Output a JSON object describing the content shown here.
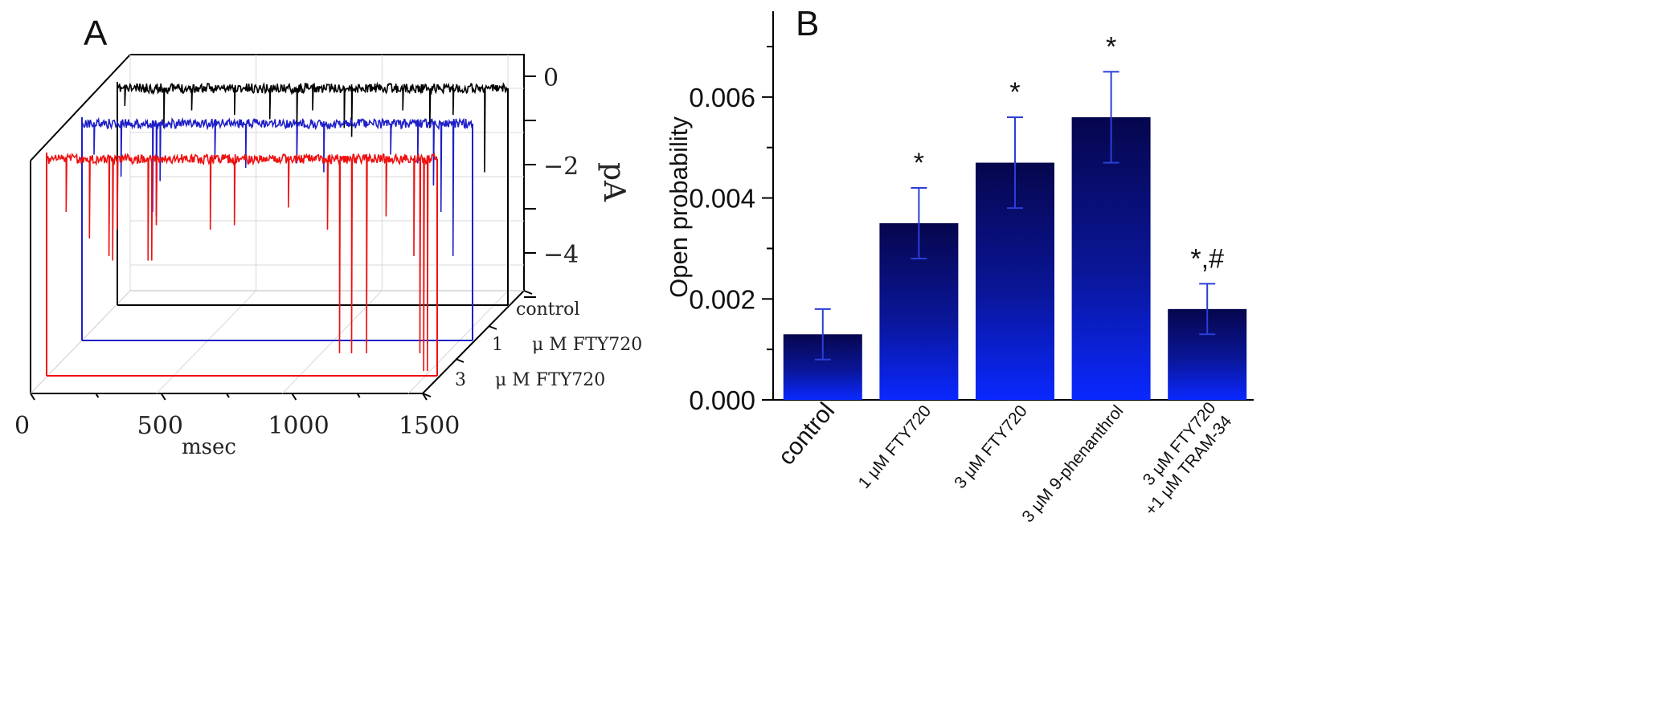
{
  "chart_data": [
    {
      "panel": "A",
      "type": "line",
      "projection": "3d-waterfall",
      "xlabel": "msec",
      "xlim": [
        0,
        1500
      ],
      "xticks": [
        0,
        500,
        1000,
        1500
      ],
      "zlabel": "pA",
      "zlim": [
        -5,
        0.5
      ],
      "zticks": [
        0,
        -2,
        -4
      ],
      "zticklabels": [
        "0",
        "−2",
        "−4"
      ],
      "series": [
        {
          "name": "control",
          "tick_label": "control",
          "color": "#000000",
          "baseline_pA": 0
        },
        {
          "name": "1 μM FTY720",
          "tick_number": "1",
          "tick_text": "μ M FTY720",
          "color": "#1f1fc8",
          "baseline_pA": 0
        },
        {
          "name": "3 μM FTY720",
          "tick_number": "3",
          "tick_text": "μ M FTY720",
          "color": "#ee1111",
          "baseline_pA": 0
        }
      ]
    },
    {
      "panel": "B",
      "type": "bar",
      "ylabel": "Open probability",
      "ylim": [
        0,
        0.0077
      ],
      "yticks": [
        "0.000",
        "0.002",
        "0.004",
        "0.006"
      ],
      "categories": [
        "control",
        "1 μM FTY720",
        "3 μM FTY720",
        "3 μM 9-phenanthrol",
        "3 μM FTY720\n+1 μM TRAM-34"
      ],
      "category_lines": [
        [
          "control"
        ],
        [
          "1 μM FTY720"
        ],
        [
          "3 μM FTY720"
        ],
        [
          "3 μM 9-phenanthrol"
        ],
        [
          "3 μM FTY720",
          "+1 μM TRAM-34"
        ]
      ],
      "values": [
        0.0013,
        0.0035,
        0.0047,
        0.0056,
        0.0018
      ],
      "errors": [
        0.0005,
        0.0007,
        0.0009,
        0.0009,
        0.0005
      ],
      "annotations": [
        "",
        "*",
        "*",
        "*",
        "*,#"
      ],
      "bar_color_top": "#06064d",
      "bar_color_bottom": "#0a28ff",
      "error_color": "#2b3fd6"
    }
  ],
  "panel_labels": {
    "a": "A",
    "b": "B"
  }
}
